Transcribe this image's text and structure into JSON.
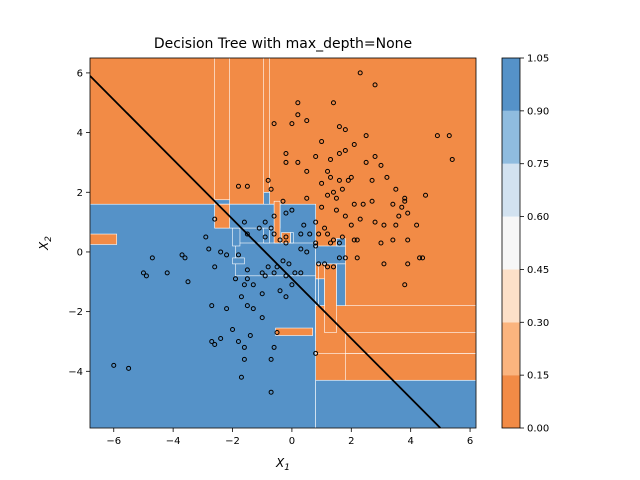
{
  "chart_data": {
    "type": "heatmap",
    "title": "Decision Tree with max_depth=None",
    "xlabel": "X",
    "xlabel_sub": "1",
    "ylabel": "X",
    "ylabel_sub": "2",
    "xlim": [
      -6.8,
      6.2
    ],
    "ylim": [
      -5.9,
      6.5
    ],
    "x_ticks": [
      -6,
      -4,
      -2,
      0,
      2,
      4,
      6
    ],
    "x_tick_labels": [
      "−6",
      "−4",
      "−2",
      "0",
      "2",
      "4",
      "6"
    ],
    "y_ticks": [
      -4,
      -2,
      0,
      2,
      4,
      6
    ],
    "y_tick_labels": [
      "−4",
      "−2",
      "0",
      "2",
      "4",
      "6"
    ],
    "colorbar": {
      "levels": [
        0.0,
        0.15,
        0.3,
        0.45,
        0.6,
        0.75,
        0.9,
        1.05
      ],
      "tick_labels": [
        "0.00",
        "0.15",
        "0.30",
        "0.45",
        "0.60",
        "0.75",
        "0.90",
        "1.05"
      ],
      "colors": [
        "#f28b46",
        "#fbb47e",
        "#fde0c8",
        "#f7f7f7",
        "#d2e2f0",
        "#8fbcdf",
        "#5592c8"
      ]
    },
    "class_colors": {
      "class_0": "#f28b46",
      "class_1": "#5592c8"
    },
    "boundary_line": {
      "x": [
        -6.8,
        5.0
      ],
      "y": [
        5.9,
        -5.9
      ],
      "color": "#000000"
    },
    "regions_class1": [
      [
        -6.8,
        0.8,
        -5.9,
        1.6
      ],
      [
        0.8,
        0.9,
        -2.7,
        -0.9
      ],
      [
        -1.9,
        0.8,
        -0.8,
        0.3
      ],
      [
        -0.05,
        0.05,
        0.3,
        0.65
      ],
      [
        0.8,
        1.8,
        -0.4,
        0.2
      ],
      [
        1.5,
        1.8,
        0.2,
        0.45
      ],
      [
        -2.0,
        -1.75,
        0.2,
        0.8
      ],
      [
        -0.95,
        -0.75,
        0.3,
        2.0
      ],
      [
        -2.6,
        -2.1,
        1.6,
        1.75
      ],
      [
        -2.0,
        -1.6,
        -0.4,
        -0.2
      ],
      [
        1.8,
        6.2,
        -5.9,
        -5.9
      ],
      [
        1.8,
        2.0,
        -2.7,
        -3.4
      ],
      [
        0.8,
        6.2,
        -5.9,
        -4.3
      ],
      [
        1.5,
        1.8,
        -2.7,
        -0.4
      ],
      [
        -2.6,
        -0.4,
        0.8,
        1.6
      ],
      [
        0.9,
        1.1,
        -2.0,
        -0.9
      ]
    ],
    "regions_class0": [
      [
        -6.8,
        -5.9,
        0.25,
        0.6
      ],
      [
        -2.6,
        -2.1,
        0.8,
        1.6
      ],
      [
        -0.6,
        -0.4,
        0.3,
        1.7
      ],
      [
        -0.95,
        -0.75,
        2.0,
        6.5
      ],
      [
        -2.6,
        -2.1,
        1.75,
        6.5
      ],
      [
        -1.2,
        -0.95,
        6.5,
        6.5
      ],
      [
        -2.5,
        -2.4,
        6.5,
        6.5
      ],
      [
        -0.35,
        -0.05,
        0.3,
        0.65
      ],
      [
        0.8,
        6.2,
        -3.4,
        -1.8
      ],
      [
        -0.55,
        0.7,
        -2.8,
        -2.55
      ],
      [
        1.1,
        1.5,
        -2.7,
        -0.4
      ],
      [
        0.8,
        0.9,
        -0.9,
        -0.4
      ],
      [
        1.8,
        6.2,
        -4.3,
        -3.4
      ],
      [
        1.8,
        6.2,
        -3.4,
        -2.7
      ]
    ],
    "series": [
      {
        "name": "class 0",
        "points": [
          [
            -0.6,
            4.3
          ],
          [
            0.2,
            5.0
          ],
          [
            0.2,
            4.6
          ],
          [
            1.4,
            5.0
          ],
          [
            2.3,
            6.0
          ],
          [
            2.8,
            5.6
          ],
          [
            0.0,
            4.3
          ],
          [
            0.5,
            4.4
          ],
          [
            -0.2,
            3.3
          ],
          [
            -0.2,
            3.0
          ],
          [
            0.2,
            3.0
          ],
          [
            0.8,
            3.2
          ],
          [
            1.0,
            3.7
          ],
          [
            1.3,
            3.1
          ],
          [
            1.6,
            4.2
          ],
          [
            1.8,
            4.1
          ],
          [
            1.6,
            3.3
          ],
          [
            1.8,
            3.4
          ],
          [
            2.1,
            3.6
          ],
          [
            2.5,
            3.9
          ],
          [
            2.5,
            3.0
          ],
          [
            2.8,
            3.2
          ],
          [
            3.0,
            2.9
          ],
          [
            4.9,
            3.9
          ],
          [
            5.3,
            3.9
          ],
          [
            5.4,
            3.1
          ],
          [
            0.5,
            2.7
          ],
          [
            1.0,
            2.3
          ],
          [
            1.2,
            2.7
          ],
          [
            1.3,
            2.5
          ],
          [
            1.6,
            2.4
          ],
          [
            1.9,
            2.4
          ],
          [
            1.4,
            2.0
          ],
          [
            1.7,
            2.1
          ],
          [
            2.0,
            2.5
          ],
          [
            2.7,
            2.4
          ],
          [
            3.2,
            2.5
          ],
          [
            3.5,
            2.1
          ],
          [
            3.8,
            1.8
          ],
          [
            4.5,
            1.9
          ],
          [
            -0.8,
            2.4
          ],
          [
            -0.7,
            2.1
          ],
          [
            -0.3,
            1.7
          ],
          [
            0.5,
            1.8
          ],
          [
            1.2,
            1.9
          ],
          [
            1.5,
            1.8
          ],
          [
            2.1,
            1.6
          ],
          [
            2.4,
            1.6
          ],
          [
            2.7,
            1.7
          ],
          [
            3.4,
            1.6
          ],
          [
            3.7,
            1.5
          ],
          [
            3.8,
            1.7
          ],
          [
            3.6,
            1.2
          ],
          [
            3.9,
            1.3
          ],
          [
            4.2,
            0.9
          ],
          [
            1.0,
            1.5
          ],
          [
            1.5,
            1.4
          ],
          [
            1.8,
            1.2
          ],
          [
            2.0,
            0.9
          ],
          [
            2.3,
            1.1
          ],
          [
            2.8,
            1.0
          ],
          [
            3.1,
            0.9
          ],
          [
            3.4,
            0.4
          ],
          [
            3.0,
            0.3
          ],
          [
            3.5,
            0.9
          ],
          [
            -0.6,
            1.2
          ],
          [
            -0.2,
            1.3
          ],
          [
            0.0,
            1.4
          ],
          [
            0.4,
            0.9
          ],
          [
            0.8,
            1.0
          ],
          [
            1.1,
            0.8
          ],
          [
            1.2,
            0.6
          ],
          [
            0.9,
            0.6
          ],
          [
            1.3,
            0.3
          ],
          [
            1.4,
            0.4
          ],
          [
            1.7,
            0.5
          ],
          [
            2.1,
            0.4
          ],
          [
            2.2,
            0.4
          ],
          [
            0.3,
            0.6
          ],
          [
            0.6,
            0.6
          ],
          [
            0.8,
            0.3
          ],
          [
            0.8,
            0.2
          ],
          [
            3.9,
            0.4
          ],
          [
            4.3,
            -0.2
          ],
          [
            4.4,
            -0.2
          ],
          [
            3.1,
            -0.4
          ],
          [
            3.9,
            -0.4
          ],
          [
            0.1,
            -0.7
          ],
          [
            0.3,
            -0.7
          ],
          [
            0.9,
            -0.4
          ],
          [
            1.1,
            -0.4
          ],
          [
            1.2,
            -0.5
          ],
          [
            1.4,
            -0.5
          ],
          [
            1.6,
            -0.2
          ],
          [
            1.8,
            -0.2
          ],
          [
            2.2,
            -0.2
          ],
          [
            0.8,
            -3.4
          ],
          [
            3.8,
            -1.1
          ],
          [
            0.3,
            0.1
          ],
          [
            -0.3,
            -0.3
          ],
          [
            -0.1,
            -0.4
          ],
          [
            0.5,
            0.0
          ]
        ]
      },
      {
        "name": "class 1",
        "points": [
          [
            -2.6,
            1.1
          ],
          [
            -1.8,
            2.2
          ],
          [
            -1.5,
            2.2
          ],
          [
            -1.6,
            1.0
          ],
          [
            -0.9,
            1.0
          ],
          [
            -2.4,
            0.0
          ],
          [
            -2.6,
            -0.5
          ],
          [
            -2.2,
            -0.1
          ],
          [
            -1.8,
            -0.1
          ],
          [
            -1.9,
            -0.9
          ],
          [
            -1.5,
            -0.9
          ],
          [
            -1.5,
            -0.6
          ],
          [
            -1.6,
            -1.1
          ],
          [
            -1.0,
            -0.7
          ],
          [
            -0.9,
            -0.8
          ],
          [
            -0.6,
            -0.7
          ],
          [
            -0.5,
            -0.5
          ],
          [
            -0.8,
            -0.5
          ],
          [
            -1.3,
            -1.1
          ],
          [
            -0.4,
            -1.3
          ],
          [
            -0.2,
            -1.5
          ],
          [
            -1.7,
            -1.5
          ],
          [
            -2.8,
            0.1
          ],
          [
            -2.9,
            0.5
          ],
          [
            -3.6,
            -0.2
          ],
          [
            -3.7,
            -0.1
          ],
          [
            -4.2,
            -0.7
          ],
          [
            -4.7,
            -0.2
          ],
          [
            -4.9,
            -0.8
          ],
          [
            -5.0,
            -0.7
          ],
          [
            -3.5,
            -1.0
          ],
          [
            -2.7,
            -1.8
          ],
          [
            -2.2,
            -1.9
          ],
          [
            -1.5,
            -1.8
          ],
          [
            -1.3,
            -1.9
          ],
          [
            -2.0,
            -2.6
          ],
          [
            -1.8,
            -3.0
          ],
          [
            -1.6,
            -3.6
          ],
          [
            -1.6,
            -3.2
          ],
          [
            -1.4,
            -2.8
          ],
          [
            -1.0,
            -2.2
          ],
          [
            -0.5,
            -2.7
          ],
          [
            -0.6,
            -3.2
          ],
          [
            -0.7,
            -3.6
          ],
          [
            -2.4,
            -2.9
          ],
          [
            -2.7,
            -3.0
          ],
          [
            -2.6,
            -3.1
          ],
          [
            -1.7,
            -4.2
          ],
          [
            -0.7,
            -4.7
          ],
          [
            -6.0,
            -3.8
          ],
          [
            -5.5,
            -3.9
          ],
          [
            -1.0,
            -1.4
          ],
          [
            -0.2,
            -0.8
          ],
          [
            0.0,
            -1.1
          ],
          [
            -0.7,
            0.8
          ],
          [
            -0.9,
            0.5
          ],
          [
            -1.1,
            0.8
          ],
          [
            -1.5,
            0.6
          ],
          [
            -0.4,
            0.4
          ],
          [
            -0.2,
            0.5
          ],
          [
            -0.2,
            0.3
          ],
          [
            -0.6,
            0.6
          ],
          [
            1.6,
            0.3
          ]
        ]
      }
    ]
  }
}
